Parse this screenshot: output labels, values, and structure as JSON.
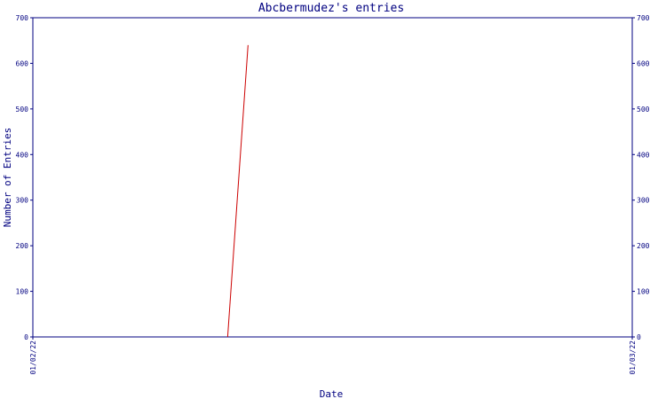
{
  "chart_data": {
    "type": "line",
    "title": "Abcbermudez's entries",
    "xlabel": "Date",
    "ylabel": "Number of Entries",
    "x_tick_labels": [
      "01/02/22",
      "01/03/22"
    ],
    "ylim": [
      0,
      700
    ],
    "y_ticks": [
      0,
      100,
      200,
      300,
      400,
      500,
      600,
      700
    ],
    "grid": false,
    "series": [
      {
        "x": [
          0.325,
          0.359
        ],
        "y": [
          0,
          640
        ]
      }
    ]
  },
  "colors": {
    "axis": "#000080",
    "title": "#000080",
    "label": "#000080",
    "line": "#cc0000",
    "tick_text": "#000080"
  }
}
